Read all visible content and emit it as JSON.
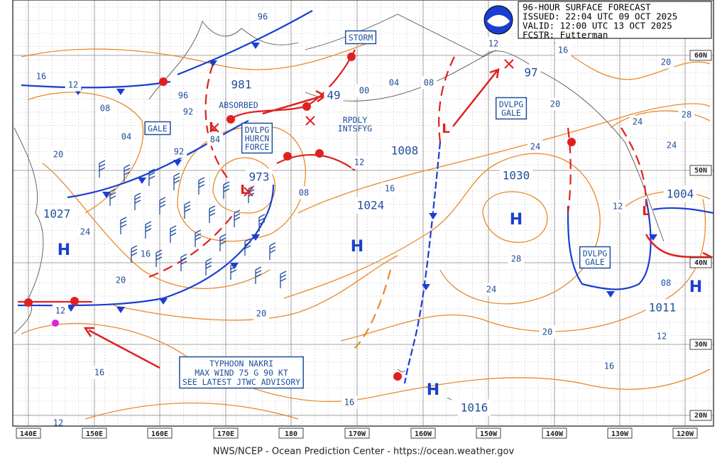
{
  "header": {
    "lines": [
      "96-HOUR SURFACE FORECAST",
      "ISSUED: 22:04 UTC 09 OCT 2025",
      "VALID:  12:00 UTC 13 OCT 2025",
      "FCSTR:  Futterman"
    ]
  },
  "longitude_labels": [
    "140E",
    "150E",
    "160E",
    "170E",
    "180",
    "170W",
    "160W",
    "150W",
    "140W",
    "130W",
    "120W"
  ],
  "latitude_labels": [
    "60N",
    "50N",
    "40N",
    "30N",
    "20N"
  ],
  "pressure_centers": [
    "981",
    "973",
    "49",
    "1008",
    "1030",
    "1024",
    "1027",
    "1004",
    "1011",
    "1016",
    "97"
  ],
  "highs": [
    "H",
    "H",
    "H",
    "H",
    "H"
  ],
  "lows": [
    "L",
    "L",
    "L",
    "L"
  ],
  "boxed_annotations": [
    "STORM",
    "GALE",
    "DVLPG\nHURCN\nFORCE",
    "DVLPG\nGALE",
    "DVLPG\nGALE"
  ],
  "typhoon_box": {
    "lines": [
      "TYPHOON NAKRI",
      "MAX WIND 75 G 90 KT",
      "SEE LATEST JTWC ADVISORY"
    ]
  },
  "notes": [
    "ABSORBED",
    "RPDLY\nINTSFYG"
  ],
  "isobar_labels": [
    "96",
    "16",
    "12",
    "08",
    "04",
    "20",
    "96",
    "92",
    "92",
    "84",
    "00",
    "04",
    "08",
    "12",
    "16",
    "20",
    "28",
    "24",
    "24",
    "20",
    "24",
    "12",
    "16",
    "08",
    "24",
    "16",
    "20",
    "20",
    "28",
    "24",
    "20",
    "16",
    "12",
    "08",
    "12",
    "12",
    "16",
    "16",
    "12"
  ],
  "footer": "NWS/NCEP - Ocean Prediction Center - https://ocean.weather.gov"
}
